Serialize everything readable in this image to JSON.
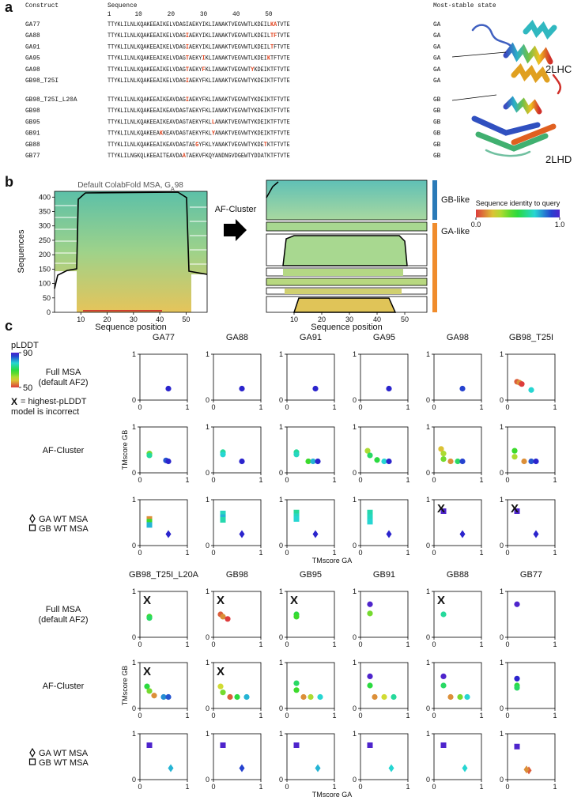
{
  "panel_a": {
    "label": "a",
    "headers": {
      "construct": "Construct",
      "sequence": "Sequence",
      "state": "Most-stable state"
    },
    "positions": [
      1,
      10,
      20,
      30,
      40,
      50
    ],
    "groups": [
      {
        "rows": [
          {
            "name": "GA77",
            "sequence": "TTYKLILNLKQAKEEAIKELVDAGIAEKYIKLIANAKTVEGVWTLKDEILKATVTE",
            "highlight": [
              51,
              52
            ],
            "state": "GA"
          },
          {
            "name": "GA88",
            "sequence": "TTYKLILNLKQAKEEAIKELVDAGIAEKYIKLIANAKTVEGVWTLKDEILTFTVTE",
            "highlight": [
              25,
              51,
              52
            ],
            "state": "GA"
          },
          {
            "name": "GA91",
            "sequence": "TTYKLILNLKQAKEEAIKELVDAGIAEKYIKLIANAKTVEGVWTLKDEILTFTVTE",
            "highlight": [
              25,
              51
            ],
            "state": "GA"
          },
          {
            "name": "GA95",
            "sequence": "TTYKLILNLKQAKEEAIKELVDAGTAEKYIKLIANAKTVEGVWTLKDEIKTFTVTE",
            "highlight": [
              25,
              30,
              50
            ],
            "state": "GA"
          },
          {
            "name": "GA98",
            "sequence": "TTYKLILNLKQAKEEAIKELVDAGTAEKYFKLIANAKTVEGVWTYKDEIKTFTVTE",
            "highlight": [
              25,
              30,
              45
            ],
            "state": "GA"
          },
          {
            "name": "GB98_T25I",
            "sequence": "TTYKLILNLKQAKEEAIKELVDAGIAEKYFKLIANAKTVEGVWTYKDEIKTFTVTE",
            "highlight": [
              25
            ],
            "state": "GA"
          }
        ]
      },
      {
        "rows": [
          {
            "name": "GB98_T25I_L20A",
            "sequence": "TTYKLILNLKQAKEEAIKEAVDAGIAEKYFKLIANAKTVEGVWTYKDEIKTFTVTE",
            "highlight": [
              25
            ],
            "state": "GB"
          },
          {
            "name": "GB98",
            "sequence": "TTYKLILNLKQAKEEAIKEAVDAGTAEKYFKLIANAKTVEGVWTYKDEIKTFTVTE",
            "highlight": [],
            "state": "GB"
          },
          {
            "name": "GB95",
            "sequence": "TTYKLILNLKQAKEEAIKEAVDAGTAEKYFKLLANAKTVEGVWTYKDEIKTFTVTE",
            "highlight": [
              33
            ],
            "state": "GB"
          },
          {
            "name": "GB91",
            "sequence": "TTYKLILNLKQAKEEAKKEAVDAGTAEKYFKLYANAKTVEGVWTYKDEIKTFTVTE",
            "highlight": [
              17,
              33
            ],
            "state": "GB"
          },
          {
            "name": "GB88",
            "sequence": "TTYKLILNLKQAKEEAIKEAVDAGTAEGYFKLYANAKTVEGVWTYKDETKTFTVTE",
            "highlight": [
              28,
              49
            ],
            "state": "GB"
          },
          {
            "name": "GB77",
            "sequence": "TTYKLILNGKQLKEEAITEAVDAATAEKVFKQYANDNGVDGEWTYDDATKTFTVTE",
            "highlight": [
              24
            ],
            "state": "GB"
          }
        ]
      }
    ],
    "structures": [
      "2LHC",
      "2LHD"
    ]
  },
  "panel_b": {
    "label": "b",
    "msa_title": [
      "Default ColabFold MSA, G",
      "A",
      "98"
    ],
    "y_label": "Sequences",
    "x_label": "Sequence position",
    "ylim": [
      0,
      420
    ],
    "yticks": [
      0,
      50,
      100,
      150,
      200,
      250,
      300,
      350,
      400
    ],
    "xlim": [
      0,
      58
    ],
    "xticks": [
      10,
      20,
      30,
      40,
      50
    ],
    "arrow_label": "AF-Cluster",
    "cluster_labels": [
      "GB-like",
      "GA-like"
    ],
    "cluster_colors": [
      "#2a7ab8",
      "#f08c2c"
    ],
    "colorbar": {
      "title": "Sequence identity to query",
      "lim": [
        0,
        1
      ],
      "ticks": [
        {
          "value": 0,
          "label": "0.0"
        },
        {
          "value": 1,
          "label": "1.0"
        }
      ]
    }
  },
  "panel_c": {
    "label": "c",
    "legend_title": "pLDDT",
    "plddt_lim": [
      50,
      90
    ],
    "plddt_ticks": [
      90,
      50
    ],
    "flag_symbol": "X",
    "flag_note": [
      "= highest-pLDDT",
      "model is incorrect"
    ],
    "row_labels": {
      "full": [
        "Full MSA",
        "(default AF2)"
      ],
      "cluster": [
        "AF-Cluster"
      ],
      "wt": [
        "GA WT MSA",
        "GB WT MSA"
      ]
    },
    "x_label": "TMscore GA",
    "y_label": "TMscore GB",
    "lim": [
      0,
      1
    ],
    "ticks": [
      0,
      1
    ],
    "blocks": [
      [
        {
          "name": "GA77",
          "full": [
            [
              0.6,
              0.25,
              88
            ]
          ],
          "cluster": [
            [
              0.2,
              0.42,
              65
            ],
            [
              0.2,
              0.38,
              75
            ],
            [
              0.55,
              0.27,
              85
            ],
            [
              0.6,
              0.25,
              88
            ]
          ],
          "ga_wt": [
            [
              0.6,
              0.25,
              88
            ]
          ],
          "gb_wt": [
            [
              0.2,
              0.58,
              55
            ],
            [
              0.2,
              0.52,
              68
            ],
            [
              0.2,
              0.45,
              80
            ]
          ]
        },
        {
          "name": "GA88",
          "full": [
            [
              0.6,
              0.25,
              88
            ]
          ],
          "cluster": [
            [
              0.2,
              0.45,
              75
            ],
            [
              0.2,
              0.4,
              78
            ],
            [
              0.6,
              0.25,
              88
            ]
          ],
          "ga_wt": [
            [
              0.6,
              0.25,
              88
            ]
          ],
          "gb_wt": [
            [
              0.2,
              0.7,
              77
            ],
            [
              0.2,
              0.62,
              80
            ],
            [
              0.2,
              0.56,
              76
            ]
          ]
        },
        {
          "name": "GA91",
          "full": [
            [
              0.6,
              0.25,
              88
            ]
          ],
          "cluster": [
            [
              0.2,
              0.45,
              75
            ],
            [
              0.2,
              0.4,
              77
            ],
            [
              0.45,
              0.25,
              68
            ],
            [
              0.55,
              0.25,
              80
            ],
            [
              0.65,
              0.25,
              88
            ]
          ],
          "ga_wt": [
            [
              0.6,
              0.25,
              88
            ]
          ],
          "gb_wt": [
            [
              0.2,
              0.72,
              75
            ],
            [
              0.2,
              0.64,
              77
            ],
            [
              0.2,
              0.58,
              78
            ]
          ]
        },
        {
          "name": "GA95",
          "full": [
            [
              0.6,
              0.25,
              88
            ]
          ],
          "cluster": [
            [
              0.15,
              0.48,
              62
            ],
            [
              0.2,
              0.38,
              72
            ],
            [
              0.35,
              0.28,
              70
            ],
            [
              0.5,
              0.25,
              78
            ],
            [
              0.6,
              0.25,
              88
            ]
          ],
          "ga_wt": [
            [
              0.6,
              0.25,
              88
            ]
          ],
          "gb_wt": [
            [
              0.2,
              0.72,
              76
            ],
            [
              0.2,
              0.62,
              77
            ],
            [
              0.2,
              0.52,
              78
            ]
          ]
        },
        {
          "name": "GA98",
          "full": [
            [
              0.6,
              0.25,
              86
            ]
          ],
          "cluster": [
            [
              0.15,
              0.52,
              58
            ],
            [
              0.2,
              0.42,
              62
            ],
            [
              0.2,
              0.3,
              65
            ],
            [
              0.35,
              0.25,
              55
            ],
            [
              0.5,
              0.25,
              72
            ],
            [
              0.6,
              0.25,
              86
            ]
          ],
          "ga_wt": [
            [
              0.6,
              0.25,
              88
            ]
          ],
          "gb_wt": [
            [
              0.2,
              0.75,
              90
            ]
          ],
          "wt_flag": true
        },
        {
          "name": "GB98_T25I",
          "full": [
            [
              0.2,
              0.4,
              52
            ],
            [
              0.25,
              0.38,
              55
            ],
            [
              0.3,
              0.35,
              50
            ],
            [
              0.5,
              0.22,
              78
            ]
          ],
          "cluster": [
            [
              0.15,
              0.48,
              68
            ],
            [
              0.15,
              0.35,
              62
            ],
            [
              0.35,
              0.25,
              55
            ],
            [
              0.5,
              0.25,
              85
            ],
            [
              0.6,
              0.25,
              88
            ]
          ],
          "ga_wt": [
            [
              0.6,
              0.25,
              88
            ]
          ],
          "gb_wt": [
            [
              0.2,
              0.75,
              90
            ]
          ],
          "wt_flag": true
        }
      ],
      [
        {
          "name": "GB98_T25I_L20A",
          "full": [
            [
              0.2,
              0.45,
              68
            ],
            [
              0.2,
              0.42,
              72
            ]
          ],
          "cluster": [
            [
              0.15,
              0.48,
              70
            ],
            [
              0.2,
              0.38,
              65
            ],
            [
              0.3,
              0.28,
              55
            ],
            [
              0.5,
              0.25,
              82
            ],
            [
              0.6,
              0.25,
              85
            ]
          ],
          "ga_wt": [
            [
              0.65,
              0.25,
              80
            ]
          ],
          "gb_wt": [
            [
              0.2,
              0.75,
              90
            ]
          ],
          "full_flag": true,
          "cluster_flag": true
        },
        {
          "name": "GB98",
          "full": [
            [
              0.15,
              0.5,
              52
            ],
            [
              0.2,
              0.45,
              55
            ],
            [
              0.3,
              0.4,
              50
            ]
          ],
          "cluster": [
            [
              0.15,
              0.48,
              60
            ],
            [
              0.2,
              0.35,
              65
            ],
            [
              0.35,
              0.25,
              52
            ],
            [
              0.5,
              0.25,
              70
            ],
            [
              0.7,
              0.25,
              80
            ]
          ],
          "ga_wt": [
            [
              0.6,
              0.25,
              86
            ]
          ],
          "gb_wt": [
            [
              0.2,
              0.75,
              90
            ]
          ],
          "full_flag": true,
          "cluster_flag": true
        },
        {
          "name": "GB95",
          "full": [
            [
              0.2,
              0.5,
              70
            ],
            [
              0.2,
              0.45,
              68
            ]
          ],
          "cluster": [
            [
              0.2,
              0.55,
              72
            ],
            [
              0.2,
              0.4,
              68
            ],
            [
              0.35,
              0.25,
              55
            ],
            [
              0.5,
              0.25,
              62
            ],
            [
              0.7,
              0.25,
              78
            ]
          ],
          "ga_wt": [
            [
              0.65,
              0.25,
              80
            ]
          ],
          "gb_wt": [
            [
              0.2,
              0.75,
              90
            ]
          ],
          "full_flag": true
        },
        {
          "name": "GB91",
          "full": [
            [
              0.2,
              0.72,
              90
            ],
            [
              0.2,
              0.52,
              65
            ]
          ],
          "cluster": [
            [
              0.2,
              0.7,
              90
            ],
            [
              0.2,
              0.5,
              70
            ],
            [
              0.3,
              0.25,
              55
            ],
            [
              0.5,
              0.25,
              60
            ],
            [
              0.7,
              0.25,
              75
            ]
          ],
          "ga_wt": [
            [
              0.65,
              0.25,
              78
            ]
          ],
          "gb_wt": [
            [
              0.2,
              0.75,
              90
            ]
          ]
        },
        {
          "name": "GB88",
          "full": [
            [
              0.2,
              0.5,
              75
            ]
          ],
          "cluster": [
            [
              0.2,
              0.7,
              90
            ],
            [
              0.2,
              0.5,
              72
            ],
            [
              0.35,
              0.25,
              55
            ],
            [
              0.55,
              0.25,
              65
            ],
            [
              0.7,
              0.25,
              78
            ]
          ],
          "ga_wt": [
            [
              0.65,
              0.25,
              78
            ]
          ],
          "gb_wt": [
            [
              0.2,
              0.75,
              90
            ]
          ],
          "full_flag": true
        },
        {
          "name": "GB77",
          "full": [
            [
              0.2,
              0.72,
              90
            ]
          ],
          "cluster": [
            [
              0.2,
              0.65,
              88
            ],
            [
              0.2,
              0.5,
              70
            ],
            [
              0.2,
              0.45,
              72
            ]
          ],
          "ga_wt": [
            [
              0.45,
              0.2,
              52
            ],
            [
              0.4,
              0.22,
              55
            ]
          ],
          "gb_wt": [
            [
              0.2,
              0.72,
              90
            ]
          ]
        }
      ]
    ]
  }
}
